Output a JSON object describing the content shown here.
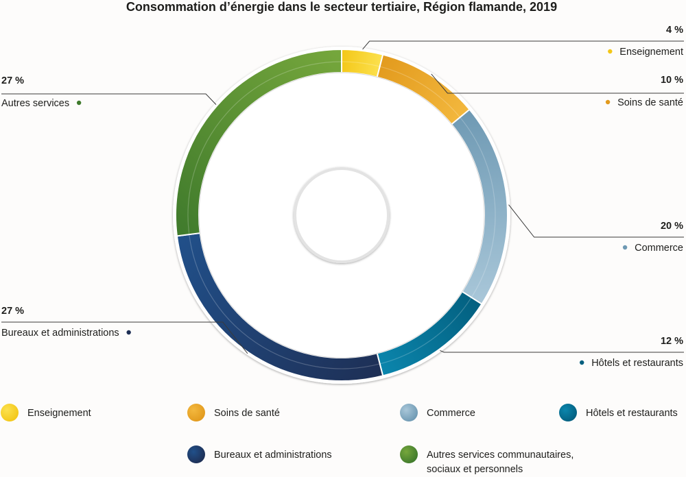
{
  "chart_data": {
    "type": "pie",
    "variant": "donut",
    "title": "Consommation d’énergie dans le secteur tertiaire, Région flamande, 2019",
    "unit": "%",
    "slices": [
      {
        "name": "Enseignement",
        "value": 4,
        "pct_label": "4 %",
        "callout_label": "Enseignement",
        "legend_label": [
          "Enseignement"
        ],
        "color": "#f3c718",
        "color_light": "#fce14e"
      },
      {
        "name": "Soins de santé",
        "value": 10,
        "pct_label": "10 %",
        "callout_label": "Soins de santé",
        "legend_label": [
          "Soins de santé"
        ],
        "color": "#e29a1d",
        "color_light": "#f3b83e"
      },
      {
        "name": "Commerce",
        "value": 20,
        "pct_label": "20 %",
        "callout_label": "Commerce",
        "legend_label": [
          "Commerce"
        ],
        "color": "#6e99b3",
        "color_light": "#a9c7d9"
      },
      {
        "name": "Hôtels et restaurants",
        "value": 12,
        "pct_label": "12 %",
        "callout_label": "Hôtels et restaurants",
        "legend_label": [
          "Hôtels et restaurants"
        ],
        "color": "#035f7f",
        "color_light": "#0b86ad"
      },
      {
        "name": "Bureaux et administrations",
        "value": 27,
        "pct_label": "27 %",
        "callout_label": "Bureaux et administrations",
        "legend_label": [
          "Bureaux et administrations"
        ],
        "color": "#1e2f55",
        "color_light": "#21508a"
      },
      {
        "name": "Autres services communautaires, sociaux et personnels",
        "value": 27,
        "pct_label": "27 %",
        "callout_label": "Autres services",
        "legend_label": [
          "Autres services communautaires,",
          "sociaux et personnels"
        ],
        "color": "#3f7a2c",
        "color_light": "#76a73c"
      }
    ],
    "legend_placement": "bottom",
    "start_angle_deg": 0,
    "direction": "clockwise"
  }
}
